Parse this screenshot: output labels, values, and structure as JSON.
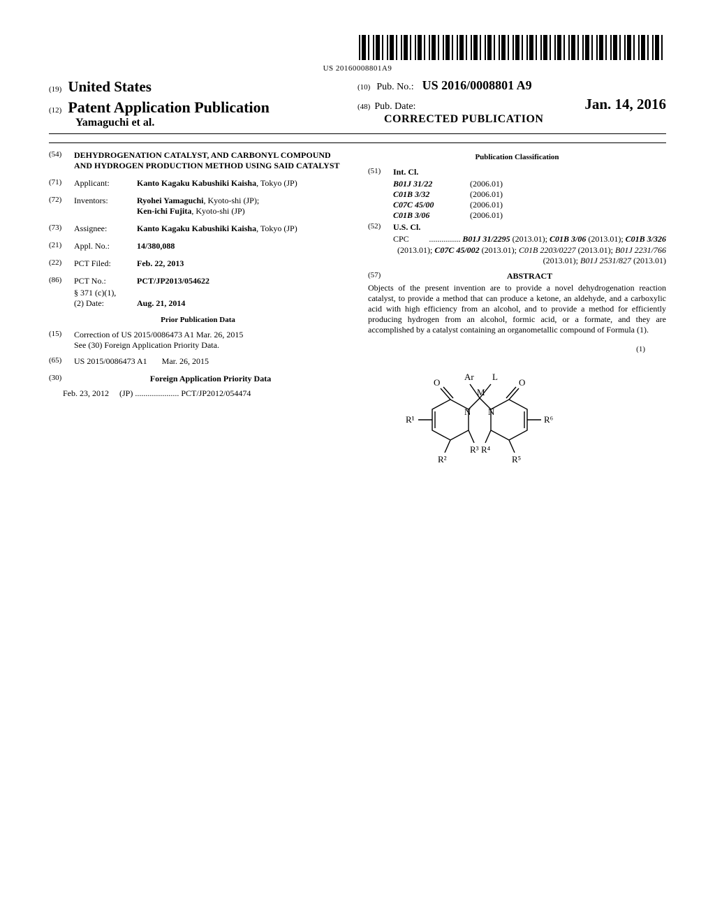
{
  "barcode_number": "US 20160008801A9",
  "header": {
    "num19": "(19)",
    "country": "United States",
    "num12": "(12)",
    "doc_type": "Patent Application Publication",
    "authors_line": "Yamaguchi et al.",
    "num10": "(10)",
    "pubno_label": "Pub. No.:",
    "pubno": "US 2016/0008801 A9",
    "num48": "(48)",
    "pubdate_label": "Pub. Date:",
    "pubdate": "Jan. 14, 2016",
    "corrected": "CORRECTED PUBLICATION"
  },
  "left": {
    "f54_num": "(54)",
    "f54_val": "DEHYDROGENATION CATALYST, AND CARBONYL COMPOUND AND HYDROGEN PRODUCTION METHOD USING SAID CATALYST",
    "f71_num": "(71)",
    "f71_label": "Applicant:",
    "f71_val_bold": "Kanto Kagaku Kabushiki Kaisha",
    "f71_loc": ", Tokyo (JP)",
    "f72_num": "(72)",
    "f72_label": "Inventors:",
    "f72_a": "Ryohei Yamaguchi",
    "f72_a_loc": ", Kyoto-shi (JP);",
    "f72_b": "Ken-ichi Fujita",
    "f72_b_loc": ", Kyoto-shi (JP)",
    "f73_num": "(73)",
    "f73_label": "Assignee:",
    "f73_val_bold": "Kanto Kagaku Kabushiki Kaisha",
    "f73_loc": ", Tokyo (JP)",
    "f21_num": "(21)",
    "f21_label": "Appl. No.:",
    "f21_val": "14/380,088",
    "f22_num": "(22)",
    "f22_label": "PCT Filed:",
    "f22_val": "Feb. 22, 2013",
    "f86_num": "(86)",
    "f86_label": "PCT No.:",
    "f86_val": "PCT/JP2013/054622",
    "f86_sub1_label": "§ 371 (c)(1),",
    "f86_sub2_label": "(2) Date:",
    "f86_sub2_val": "Aug. 21, 2014",
    "prior_title": "Prior Publication Data",
    "f15_num": "(15)",
    "f15_line1": "Correction of US 2015/0086473 A1 Mar. 26, 2015",
    "f15_line2": "See (30) Foreign Application Priority Data.",
    "f65_num": "(65)",
    "f65_val": "US 2015/0086473 A1       Mar. 26, 2015",
    "f30_num": "(30)",
    "f30_title": "Foreign Application Priority Data",
    "f30_date": "Feb. 23, 2012",
    "f30_cc": "(JP)",
    "f30_dots": " ..................... ",
    "f30_app": "PCT/JP2012/054474"
  },
  "right": {
    "pub_class_title": "Publication Classification",
    "f51_num": "(51)",
    "f51_label": "Int. Cl.",
    "intcl": [
      {
        "code": "B01J 31/22",
        "ver": "(2006.01)"
      },
      {
        "code": "C01B 3/32",
        "ver": "(2006.01)"
      },
      {
        "code": "C07C 45/00",
        "ver": "(2006.01)"
      },
      {
        "code": "C01B 3/06",
        "ver": "(2006.01)"
      }
    ],
    "f52_num": "(52)",
    "f52_label": "U.S. Cl.",
    "cpc_label": "CPC",
    "cpc_dots": " ............... ",
    "cpc": [
      {
        "code": "B01J 31/2295",
        "ver": "(2013.01)",
        "bold": true
      },
      {
        "code": "C01B 3/06",
        "ver": "(2013.01)",
        "bold": true
      },
      {
        "code": "C01B 3/326",
        "ver": "(2013.01)",
        "bold": true
      },
      {
        "code": "C07C 45/002",
        "ver": "(2013.01)",
        "bold": true
      },
      {
        "code": "C01B 2203/0227",
        "ver": "(2013.01)",
        "bold": false
      },
      {
        "code": "B01J 2231/766",
        "ver": "(2013.01)",
        "bold": false
      },
      {
        "code": "B01J 2531/827",
        "ver": "(2013.01)",
        "bold": false
      }
    ],
    "f57_num": "(57)",
    "f57_title": "ABSTRACT",
    "abstract": "Objects of the present invention are to provide a novel dehydrogenation reaction catalyst, to provide a method that can produce a ketone, an aldehyde, and a carboxylic acid with high efficiency from an alcohol, and to provide a method for efficiently producing hydrogen from an alcohol, formic acid, or a formate, and they are accomplished by a catalyst containing an organometallic compound of Formula (1).",
    "formula_num": "(1)",
    "formula_labels": {
      "Ar": "Ar",
      "L": "L",
      "M": "M",
      "O1": "O",
      "O2": "O",
      "N1": "N",
      "N2": "N",
      "R1": "R¹",
      "R2": "R²",
      "R3": "R³",
      "R4": "R⁴",
      "R5": "R⁵",
      "R6": "R⁶"
    }
  }
}
